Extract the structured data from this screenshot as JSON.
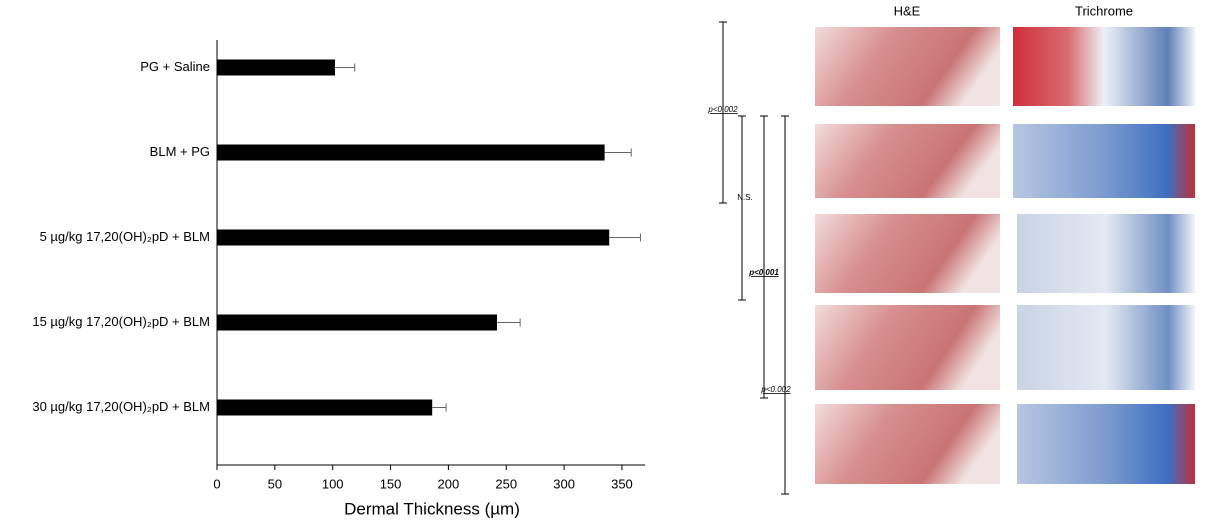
{
  "chart_data": {
    "type": "bar",
    "orientation": "horizontal",
    "categories": [
      "PG + Saline",
      "BLM + PG",
      "5 µg/kg 17,20(OH)₂pD + BLM",
      "15 µg/kg 17,20(OH)₂pD + BLM",
      "30 µg/kg 17,20(OH)₂pD + BLM"
    ],
    "values": [
      102,
      335,
      339,
      242,
      186
    ],
    "errors": [
      17,
      23,
      27,
      20,
      12
    ],
    "color": "#000000",
    "xlim": [
      0,
      370
    ],
    "xticks": [
      0,
      50,
      100,
      150,
      200,
      250,
      300,
      350
    ],
    "xlabel": "Dermal Thickness (µm)",
    "annotations": [
      "p<0.002",
      "N.S.",
      "p<0.001",
      "p<0.002"
    ],
    "panel_titles": [
      "H&E",
      "Trichrome"
    ]
  }
}
